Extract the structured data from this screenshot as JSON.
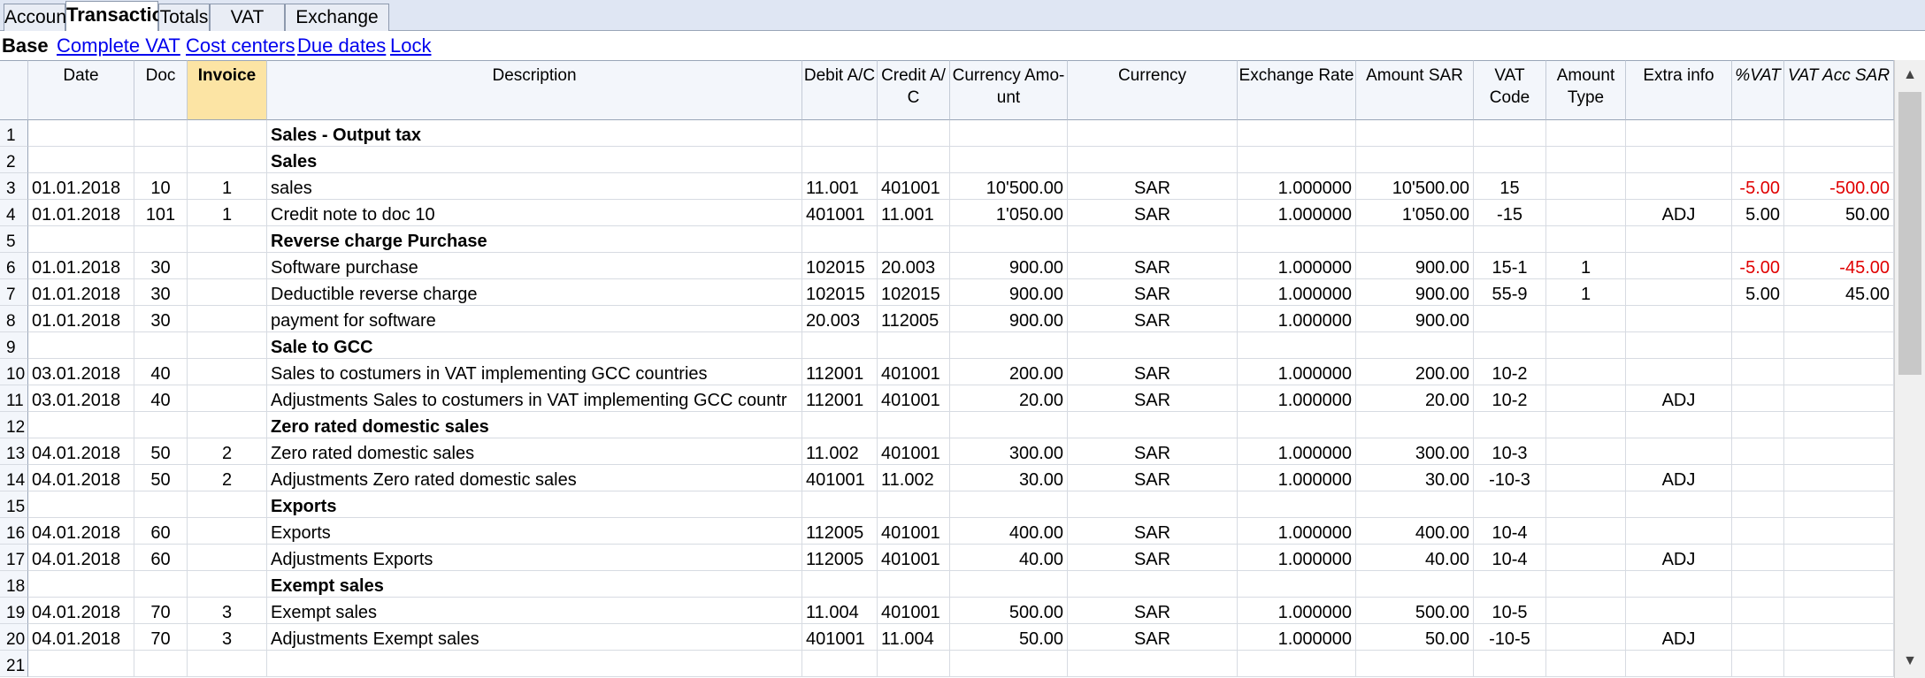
{
  "tabs": [
    "Accounts",
    "Transactions",
    "Totals",
    "VAT codes",
    "Exchange rates"
  ],
  "active_tab": "Transactions",
  "views": {
    "active": "Base",
    "links": [
      "Complete VAT",
      "Cost centers",
      "Due dates",
      "Lock"
    ]
  },
  "columns": [
    {
      "key": "date",
      "label": "Date",
      "align": "l"
    },
    {
      "key": "doc",
      "label": "Doc",
      "align": "c"
    },
    {
      "key": "invoice",
      "label": "Invoice",
      "align": "c"
    },
    {
      "key": "description",
      "label": "Description",
      "align": "l"
    },
    {
      "key": "debit",
      "label": "Debit A/C",
      "align": "l"
    },
    {
      "key": "credit",
      "label": "Credit A/ C",
      "align": "l"
    },
    {
      "key": "currency_amount",
      "label": "Currency Amo- unt",
      "align": "r"
    },
    {
      "key": "currency",
      "label": "Currency",
      "align": "c"
    },
    {
      "key": "exchange_rate",
      "label": "Exchange Rate",
      "align": "r"
    },
    {
      "key": "amount_sar",
      "label": "Amount SAR",
      "align": "r"
    },
    {
      "key": "vat_code",
      "label": "VAT Code",
      "align": "c"
    },
    {
      "key": "amount_type",
      "label": "Amount Type",
      "align": "c"
    },
    {
      "key": "extra_info",
      "label": "Extra info",
      "align": "c"
    },
    {
      "key": "pct_vat",
      "label": "%VAT",
      "align": "r"
    },
    {
      "key": "vat_acc_sar",
      "label": "VAT Acc SAR",
      "align": "r"
    }
  ],
  "rows": [
    {
      "n": "1",
      "description": "Sales - Output tax",
      "bold": true
    },
    {
      "n": "2",
      "description": "Sales",
      "bold": true
    },
    {
      "n": "3",
      "date": "01.01.2018",
      "doc": "10",
      "invoice": "1",
      "description": "sales",
      "debit": "11.001",
      "credit": "401001",
      "currency_amount": "10'500.00",
      "currency": "SAR",
      "exchange_rate": "1.000000",
      "amount_sar": "10'500.00",
      "vat_code": "15",
      "pct_vat": "-5.00",
      "vat_acc_sar": "-500.00"
    },
    {
      "n": "4",
      "date": "01.01.2018",
      "doc": "101",
      "invoice": "1",
      "description": "Credit note to doc 10",
      "debit": "401001",
      "credit": "11.001",
      "currency_amount": "1'050.00",
      "currency": "SAR",
      "exchange_rate": "1.000000",
      "amount_sar": "1'050.00",
      "vat_code": "-15",
      "extra_info": "ADJ",
      "pct_vat": "5.00",
      "vat_acc_sar": "50.00"
    },
    {
      "n": "5",
      "description": "Reverse charge Purchase",
      "bold": true
    },
    {
      "n": "6",
      "date": "01.01.2018",
      "doc": "30",
      "description": "Software purchase",
      "debit": "102015",
      "credit": "20.003",
      "currency_amount": "900.00",
      "currency": "SAR",
      "exchange_rate": "1.000000",
      "amount_sar": "900.00",
      "vat_code": "15-1",
      "amount_type": "1",
      "pct_vat": "-5.00",
      "vat_acc_sar": "-45.00"
    },
    {
      "n": "7",
      "date": "01.01.2018",
      "doc": "30",
      "description": "Deductible reverse charge",
      "debit": "102015",
      "credit": "102015",
      "currency_amount": "900.00",
      "currency": "SAR",
      "exchange_rate": "1.000000",
      "amount_sar": "900.00",
      "vat_code": "55-9",
      "amount_type": "1",
      "pct_vat": "5.00",
      "vat_acc_sar": "45.00"
    },
    {
      "n": "8",
      "date": "01.01.2018",
      "doc": "30",
      "description": "payment for software",
      "debit": "20.003",
      "credit": "112005",
      "currency_amount": "900.00",
      "currency": "SAR",
      "exchange_rate": "1.000000",
      "amount_sar": "900.00"
    },
    {
      "n": "9",
      "description": "Sale to GCC",
      "bold": true
    },
    {
      "n": "10",
      "date": "03.01.2018",
      "doc": "40",
      "description": "Sales to costumers in VAT implementing GCC countries",
      "debit": "112001",
      "credit": "401001",
      "currency_amount": "200.00",
      "currency": "SAR",
      "exchange_rate": "1.000000",
      "amount_sar": "200.00",
      "vat_code": "10-2"
    },
    {
      "n": "11",
      "date": "03.01.2018",
      "doc": "40",
      "description": "Adjustments Sales to costumers in VAT implementing GCC countr",
      "debit": "112001",
      "credit": "401001",
      "currency_amount": "20.00",
      "currency": "SAR",
      "exchange_rate": "1.000000",
      "amount_sar": "20.00",
      "vat_code": "10-2",
      "extra_info": "ADJ"
    },
    {
      "n": "12",
      "description": "Zero rated domestic sales",
      "bold": true
    },
    {
      "n": "13",
      "date": "04.01.2018",
      "doc": "50",
      "invoice": "2",
      "description": "Zero rated domestic sales",
      "debit": "11.002",
      "credit": "401001",
      "currency_amount": "300.00",
      "currency": "SAR",
      "exchange_rate": "1.000000",
      "amount_sar": "300.00",
      "vat_code": "10-3"
    },
    {
      "n": "14",
      "date": "04.01.2018",
      "doc": "50",
      "invoice": "2",
      "description": "Adjustments Zero rated domestic sales",
      "debit": "401001",
      "credit": "11.002",
      "currency_amount": "30.00",
      "currency": "SAR",
      "exchange_rate": "1.000000",
      "amount_sar": "30.00",
      "vat_code": "-10-3",
      "extra_info": "ADJ"
    },
    {
      "n": "15",
      "description": "Exports",
      "bold": true
    },
    {
      "n": "16",
      "date": "04.01.2018",
      "doc": "60",
      "description": "Exports",
      "debit": "112005",
      "credit": "401001",
      "currency_amount": "400.00",
      "currency": "SAR",
      "exchange_rate": "1.000000",
      "amount_sar": "400.00",
      "vat_code": "10-4"
    },
    {
      "n": "17",
      "date": "04.01.2018",
      "doc": "60",
      "description": "Adjustments Exports",
      "debit": "112005",
      "credit": "401001",
      "currency_amount": "40.00",
      "currency": "SAR",
      "exchange_rate": "1.000000",
      "amount_sar": "40.00",
      "vat_code": "10-4",
      "extra_info": "ADJ"
    },
    {
      "n": "18",
      "description": "Exempt sales",
      "bold": true
    },
    {
      "n": "19",
      "date": "04.01.2018",
      "doc": "70",
      "invoice": "3",
      "description": "Exempt sales",
      "debit": "11.004",
      "credit": "401001",
      "currency_amount": "500.00",
      "currency": "SAR",
      "exchange_rate": "1.000000",
      "amount_sar": "500.00",
      "vat_code": "10-5"
    },
    {
      "n": "20",
      "date": "04.01.2018",
      "doc": "70",
      "invoice": "3",
      "description": "Adjustments Exempt sales",
      "debit": "401001",
      "credit": "11.004",
      "currency_amount": "50.00",
      "currency": "SAR",
      "exchange_rate": "1.000000",
      "amount_sar": "50.00",
      "vat_code": "-10-5",
      "extra_info": "ADJ"
    },
    {
      "n": "21"
    }
  ],
  "highlight_column": "invoice",
  "italic_columns": [
    "pct_vat",
    "vat_acc_sar"
  ],
  "colors": {
    "negative": "#e00000",
    "link": "#0000ee",
    "highlight_header": "#fce4a4",
    "tabstrip": "#dfe6f3"
  },
  "scrollbar": {
    "up_icon": "chevron-up-icon",
    "down_icon": "chevron-down-icon"
  }
}
